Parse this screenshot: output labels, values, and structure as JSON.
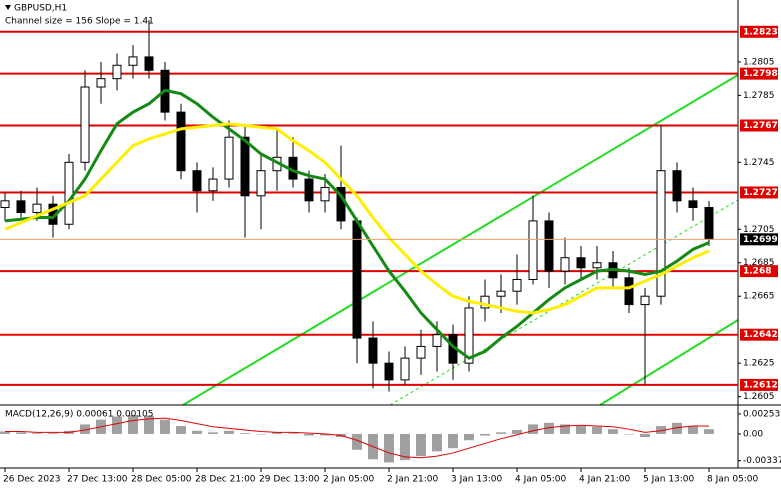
{
  "chart_data": [
    {
      "type": "candlestick",
      "title": "GBPUSD,H1",
      "subtitle": "Channel size = 156 Slope = 1.41",
      "open": [
        1.2718,
        1.2722,
        1.2715,
        1.272,
        1.2708,
        1.2745,
        1.279,
        1.2795,
        1.2803,
        1.2808,
        1.28,
        1.2775,
        1.274,
        1.2728,
        1.2735,
        1.276,
        1.2725,
        1.274,
        1.2748,
        1.2735,
        1.2722,
        1.273,
        1.271,
        1.264,
        1.2625,
        1.2615,
        1.2628,
        1.2635,
        1.2642,
        1.2625,
        1.2658,
        1.2665,
        1.2668,
        1.2675,
        1.271,
        1.268,
        1.2688,
        1.2682,
        1.2685,
        1.2676,
        1.266,
        1.2665,
        1.274,
        1.2722,
        1.2718
      ],
      "high": [
        1.2727,
        1.2728,
        1.273,
        1.2725,
        1.275,
        1.28,
        1.2805,
        1.281,
        1.2815,
        1.283,
        1.2805,
        1.278,
        1.2745,
        1.2742,
        1.277,
        1.2768,
        1.275,
        1.2765,
        1.276,
        1.274,
        1.2738,
        1.2755,
        1.2712,
        1.265,
        1.2632,
        1.2635,
        1.2645,
        1.265,
        1.2648,
        1.2665,
        1.2675,
        1.2678,
        1.269,
        1.2725,
        1.2715,
        1.27,
        1.2695,
        1.2695,
        1.2692,
        1.2682,
        1.267,
        1.2767,
        1.2745,
        1.273,
        1.2722
      ],
      "low": [
        1.271,
        1.2712,
        1.271,
        1.27,
        1.2705,
        1.274,
        1.278,
        1.2788,
        1.2795,
        1.2795,
        1.277,
        1.2735,
        1.2715,
        1.2722,
        1.273,
        1.27,
        1.2705,
        1.2728,
        1.273,
        1.2715,
        1.2715,
        1.2705,
        1.2625,
        1.261,
        1.2608,
        1.2612,
        1.2618,
        1.262,
        1.2615,
        1.262,
        1.265,
        1.2655,
        1.266,
        1.2672,
        1.267,
        1.2672,
        1.2675,
        1.2675,
        1.267,
        1.2655,
        1.2612,
        1.266,
        1.2715,
        1.271,
        1.2695
      ],
      "close": [
        1.2722,
        1.2715,
        1.272,
        1.2708,
        1.2745,
        1.279,
        1.2795,
        1.2803,
        1.2808,
        1.28,
        1.2775,
        1.274,
        1.2728,
        1.2735,
        1.276,
        1.2725,
        1.274,
        1.2748,
        1.2735,
        1.2722,
        1.273,
        1.271,
        1.264,
        1.2625,
        1.2615,
        1.2628,
        1.2635,
        1.2642,
        1.2625,
        1.2658,
        1.2665,
        1.2668,
        1.2675,
        1.271,
        1.268,
        1.2688,
        1.2682,
        1.2685,
        1.2676,
        1.266,
        1.2665,
        1.274,
        1.2722,
        1.2718,
        1.2699
      ],
      "lines": [
        {
          "color": "#138a13",
          "values": [
            1.271,
            1.2711,
            1.2712,
            1.2712,
            1.2722,
            1.2735,
            1.2752,
            1.2768,
            1.2775,
            1.278,
            1.2788,
            1.2786,
            1.278,
            1.2772,
            1.2765,
            1.2758,
            1.275,
            1.2745,
            1.274,
            1.2737,
            1.2735,
            1.2725,
            1.271,
            1.2695,
            1.268,
            1.2668,
            1.2655,
            1.2645,
            1.2635,
            1.2628,
            1.2632,
            1.264,
            1.2647,
            1.2655,
            1.2663,
            1.267,
            1.2675,
            1.268,
            1.2681,
            1.268,
            1.2678,
            1.268,
            1.2686,
            1.2693,
            1.2697
          ]
        },
        {
          "color": "#ffee00",
          "values": [
            1.2705,
            1.2709,
            1.2713,
            1.2717,
            1.2721,
            1.2725,
            1.2735,
            1.2745,
            1.2755,
            1.2759,
            1.2762,
            1.2765,
            1.2766,
            1.2767,
            1.2768,
            1.2767,
            1.2766,
            1.2765,
            1.2758,
            1.2752,
            1.2745,
            1.2735,
            1.2725,
            1.2712,
            1.27,
            1.269,
            1.268,
            1.2672,
            1.2665,
            1.2662,
            1.266,
            1.2658,
            1.2656,
            1.2655,
            1.2657,
            1.266,
            1.2665,
            1.267,
            1.267,
            1.267,
            1.2674,
            1.2678,
            1.2683,
            1.2688,
            1.2692
          ]
        }
      ],
      "levels": [
        1.2823,
        1.2798,
        1.2767,
        1.2727,
        1.268,
        1.2642,
        1.2612
      ],
      "level_color": "#e00000",
      "last_price": 1.2699,
      "ylim": [
        1.26,
        1.2842
      ],
      "yticks": [
        1.2805,
        1.2785,
        1.2745,
        1.2705,
        1.2685,
        1.2665,
        1.2625,
        1.2605
      ],
      "xticks": [
        {
          "value": 0,
          "label": "26 Dec 2023"
        },
        {
          "value": 4,
          "label": "27 Dec 13:00"
        },
        {
          "value": 8,
          "label": "28 Dec 05:00"
        },
        {
          "value": 12,
          "label": "28 Dec 21:00"
        },
        {
          "value": 16,
          "label": "29 Dec 13:00"
        },
        {
          "value": 20,
          "label": "2 Jan 05:00"
        },
        {
          "value": 24,
          "label": "2 Jan 21:00"
        },
        {
          "value": 28,
          "label": "3 Jan 13:00"
        },
        {
          "value": 32,
          "label": "4 Jan 05:00"
        },
        {
          "value": 36,
          "label": "4 Jan 21:00"
        },
        {
          "value": 40,
          "label": "5 Jan 13:00"
        },
        {
          "value": 44,
          "label": "8 Jan 05:00"
        }
      ]
    },
    {
      "type": "macd",
      "title": "MACD(12,26,9) 0.00061 0.00105",
      "histogram": [
        0.0003,
        0.0002,
        0.0001,
        0.0001,
        0.0004,
        0.0012,
        0.0018,
        0.0022,
        0.0024,
        0.0023,
        0.0018,
        0.001,
        0.0004,
        0.0002,
        0.0004,
        0.0001,
        0,
        0.0002,
        0.0001,
        -0.0002,
        -0.0002,
        -0.0004,
        -0.002,
        -0.0032,
        -0.0036,
        -0.0033,
        -0.0028,
        -0.0022,
        -0.0018,
        -0.0008,
        -0.0002,
        0.0002,
        0.0005,
        0.0012,
        0.0014,
        0.0012,
        0.001,
        0.0009,
        0.0006,
        0,
        -0.0004,
        0.001,
        0.0014,
        0.001,
        0.0006
      ],
      "histogram_color": "#a0a0a0",
      "signal": [
        0.0003,
        0.0003,
        0.0002,
        0.0002,
        0.0002,
        0.0005,
        0.0009,
        0.0013,
        0.0017,
        0.0019,
        0.002,
        0.0017,
        0.0013,
        0.0009,
        0.0007,
        0.0005,
        0.0003,
        0.0002,
        0.0002,
        0.0001,
        0,
        -0.0002,
        -0.0008,
        -0.0016,
        -0.0024,
        -0.0029,
        -0.003,
        -0.0028,
        -0.0024,
        -0.0018,
        -0.0012,
        -0.0006,
        -0.0001,
        0.0004,
        0.0008,
        0.001,
        0.0011,
        0.001,
        0.0009,
        0.0006,
        0.0002,
        0.0004,
        0.0008,
        0.001,
        0.001
      ],
      "signal_color": "#e00000",
      "ylim": [
        -0.0043,
        0.0034
      ],
      "yticks": [
        0.00253,
        {
          "value": 0,
          "label": "0.00"
        },
        -0.00337
      ]
    }
  ]
}
